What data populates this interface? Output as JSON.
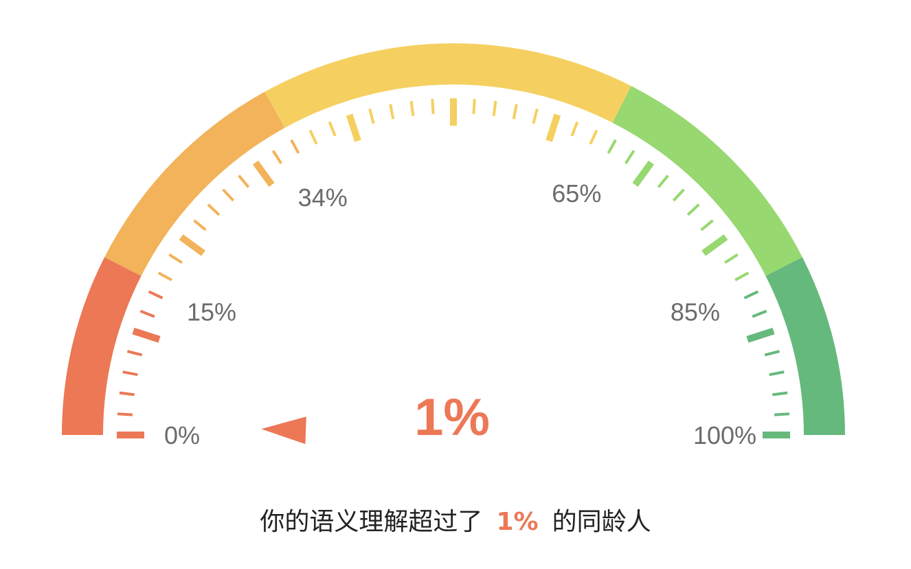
{
  "chart_data": {
    "type": "gauge",
    "min": 0,
    "max": 100,
    "value": 1,
    "value_label": "1%",
    "tick_labels": [
      {
        "value": 0,
        "text": "0%"
      },
      {
        "value": 15,
        "text": "15%"
      },
      {
        "value": 34,
        "text": "34%"
      },
      {
        "value": 65,
        "text": "65%"
      },
      {
        "value": 85,
        "text": "85%"
      },
      {
        "value": 100,
        "text": "100%"
      }
    ],
    "bands": [
      {
        "from": 0,
        "to": 15,
        "color": "#EC7856"
      },
      {
        "from": 15,
        "to": 34,
        "color": "#F2B35A"
      },
      {
        "from": 34,
        "to": 65,
        "color": "#F5D060"
      },
      {
        "from": 65,
        "to": 85,
        "color": "#97D870"
      },
      {
        "from": 85,
        "to": 100,
        "color": "#66B97C"
      }
    ],
    "value_color": "#EC7856"
  },
  "caption": {
    "prefix": "你的语义理解超过了",
    "value": "1%",
    "suffix": "的同龄人"
  }
}
